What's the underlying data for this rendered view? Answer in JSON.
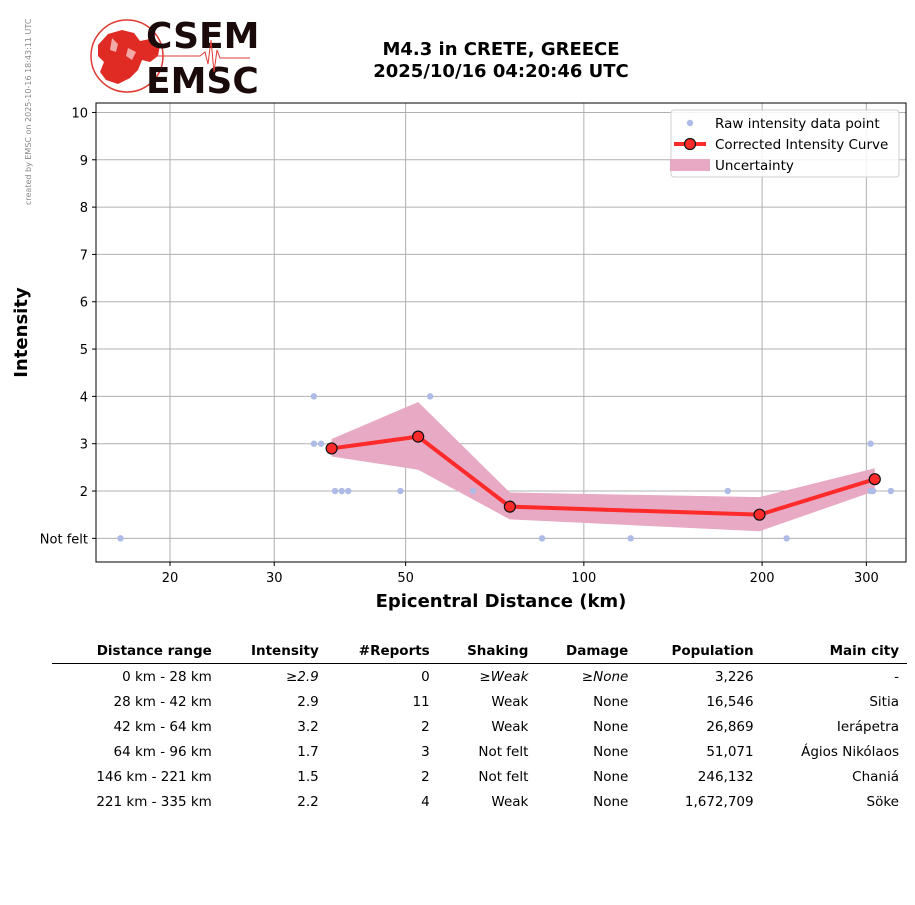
{
  "header": {
    "title_line1": "M4.3 in CRETE, GREECE",
    "title_line2": "2025/10/16 04:20:46 UTC",
    "credit": "created by EMSC on 2025-10-16 18:43:11 UTC",
    "logo_top": "CSEM",
    "logo_bottom": "EMSC"
  },
  "chart_data": {
    "type": "line",
    "xlabel": "Epicentral Distance (km)",
    "ylabel": "Intensity",
    "x_scale": "log",
    "xlim": [
      15,
      350
    ],
    "ylim": [
      0.5,
      10.2
    ],
    "x_ticks": [
      20,
      30,
      50,
      100,
      200,
      300
    ],
    "y_ticks": [
      1,
      2,
      3,
      4,
      5,
      6,
      7,
      8,
      9,
      10
    ],
    "y_tick_labels": [
      "Not felt",
      "2",
      "3",
      "4",
      "5",
      "6",
      "7",
      "8",
      "9",
      "10"
    ],
    "grid": true,
    "legend_position": "top-right",
    "legend": [
      {
        "label": "Raw intensity data point",
        "kind": "dot",
        "color": "#aebbe6"
      },
      {
        "label": "Corrected Intensity Curve",
        "kind": "line-marker",
        "color": "#ff2a2a"
      },
      {
        "label": "Uncertainty",
        "kind": "patch",
        "color": "#e8a9c4"
      }
    ],
    "series": [
      {
        "name": "Raw intensity data point",
        "x": [
          16.5,
          35,
          35,
          36,
          38,
          39,
          40,
          49,
          55,
          65,
          85,
          120,
          175,
          220,
          305,
          305,
          308,
          330
        ],
        "y": [
          1,
          4,
          3,
          3,
          2,
          2,
          2,
          2,
          4,
          2,
          1,
          1,
          2,
          1,
          3,
          2,
          2,
          2
        ]
      },
      {
        "name": "Corrected Intensity Curve",
        "x": [
          37.5,
          52.5,
          75,
          198,
          310
        ],
        "y": [
          2.9,
          3.15,
          1.67,
          1.5,
          2.25
        ]
      },
      {
        "name": "Uncertainty",
        "x": [
          37.5,
          52.5,
          75,
          198,
          310
        ],
        "upper": [
          3.1,
          3.88,
          1.97,
          1.87,
          2.48
        ],
        "lower": [
          2.73,
          2.45,
          1.4,
          1.15,
          2.0
        ]
      }
    ]
  },
  "table": {
    "headers": [
      "Distance range",
      "Intensity",
      "#Reports",
      "Shaking",
      "Damage",
      "Population",
      "Main city"
    ],
    "rows": [
      {
        "range": "0 km -   28 km",
        "intensity": "≥2.9",
        "reports": "0",
        "shaking": "≥Weak",
        "damage": "≥None",
        "population": "3,226",
        "city": "-"
      },
      {
        "range": "28 km -   42 km",
        "intensity": "2.9",
        "reports": "11",
        "shaking": "Weak",
        "damage": "None",
        "population": "16,546",
        "city": "Sitia"
      },
      {
        "range": "42 km -   64 km",
        "intensity": "3.2",
        "reports": "2",
        "shaking": "Weak",
        "damage": "None",
        "population": "26,869",
        "city": "Ierápetra"
      },
      {
        "range": "64 km -   96 km",
        "intensity": "1.7",
        "reports": "3",
        "shaking": "Not felt",
        "damage": "None",
        "population": "51,071",
        "city": "Ágios Nikólaos"
      },
      {
        "range": "146 km -  221 km",
        "intensity": "1.5",
        "reports": "2",
        "shaking": "Not felt",
        "damage": "None",
        "population": "246,132",
        "city": "Chaniá"
      },
      {
        "range": "221 km -  335 km",
        "intensity": "2.2",
        "reports": "4",
        "shaking": "Weak",
        "damage": "None",
        "population": "1,672,709",
        "city": "Söke"
      }
    ]
  }
}
